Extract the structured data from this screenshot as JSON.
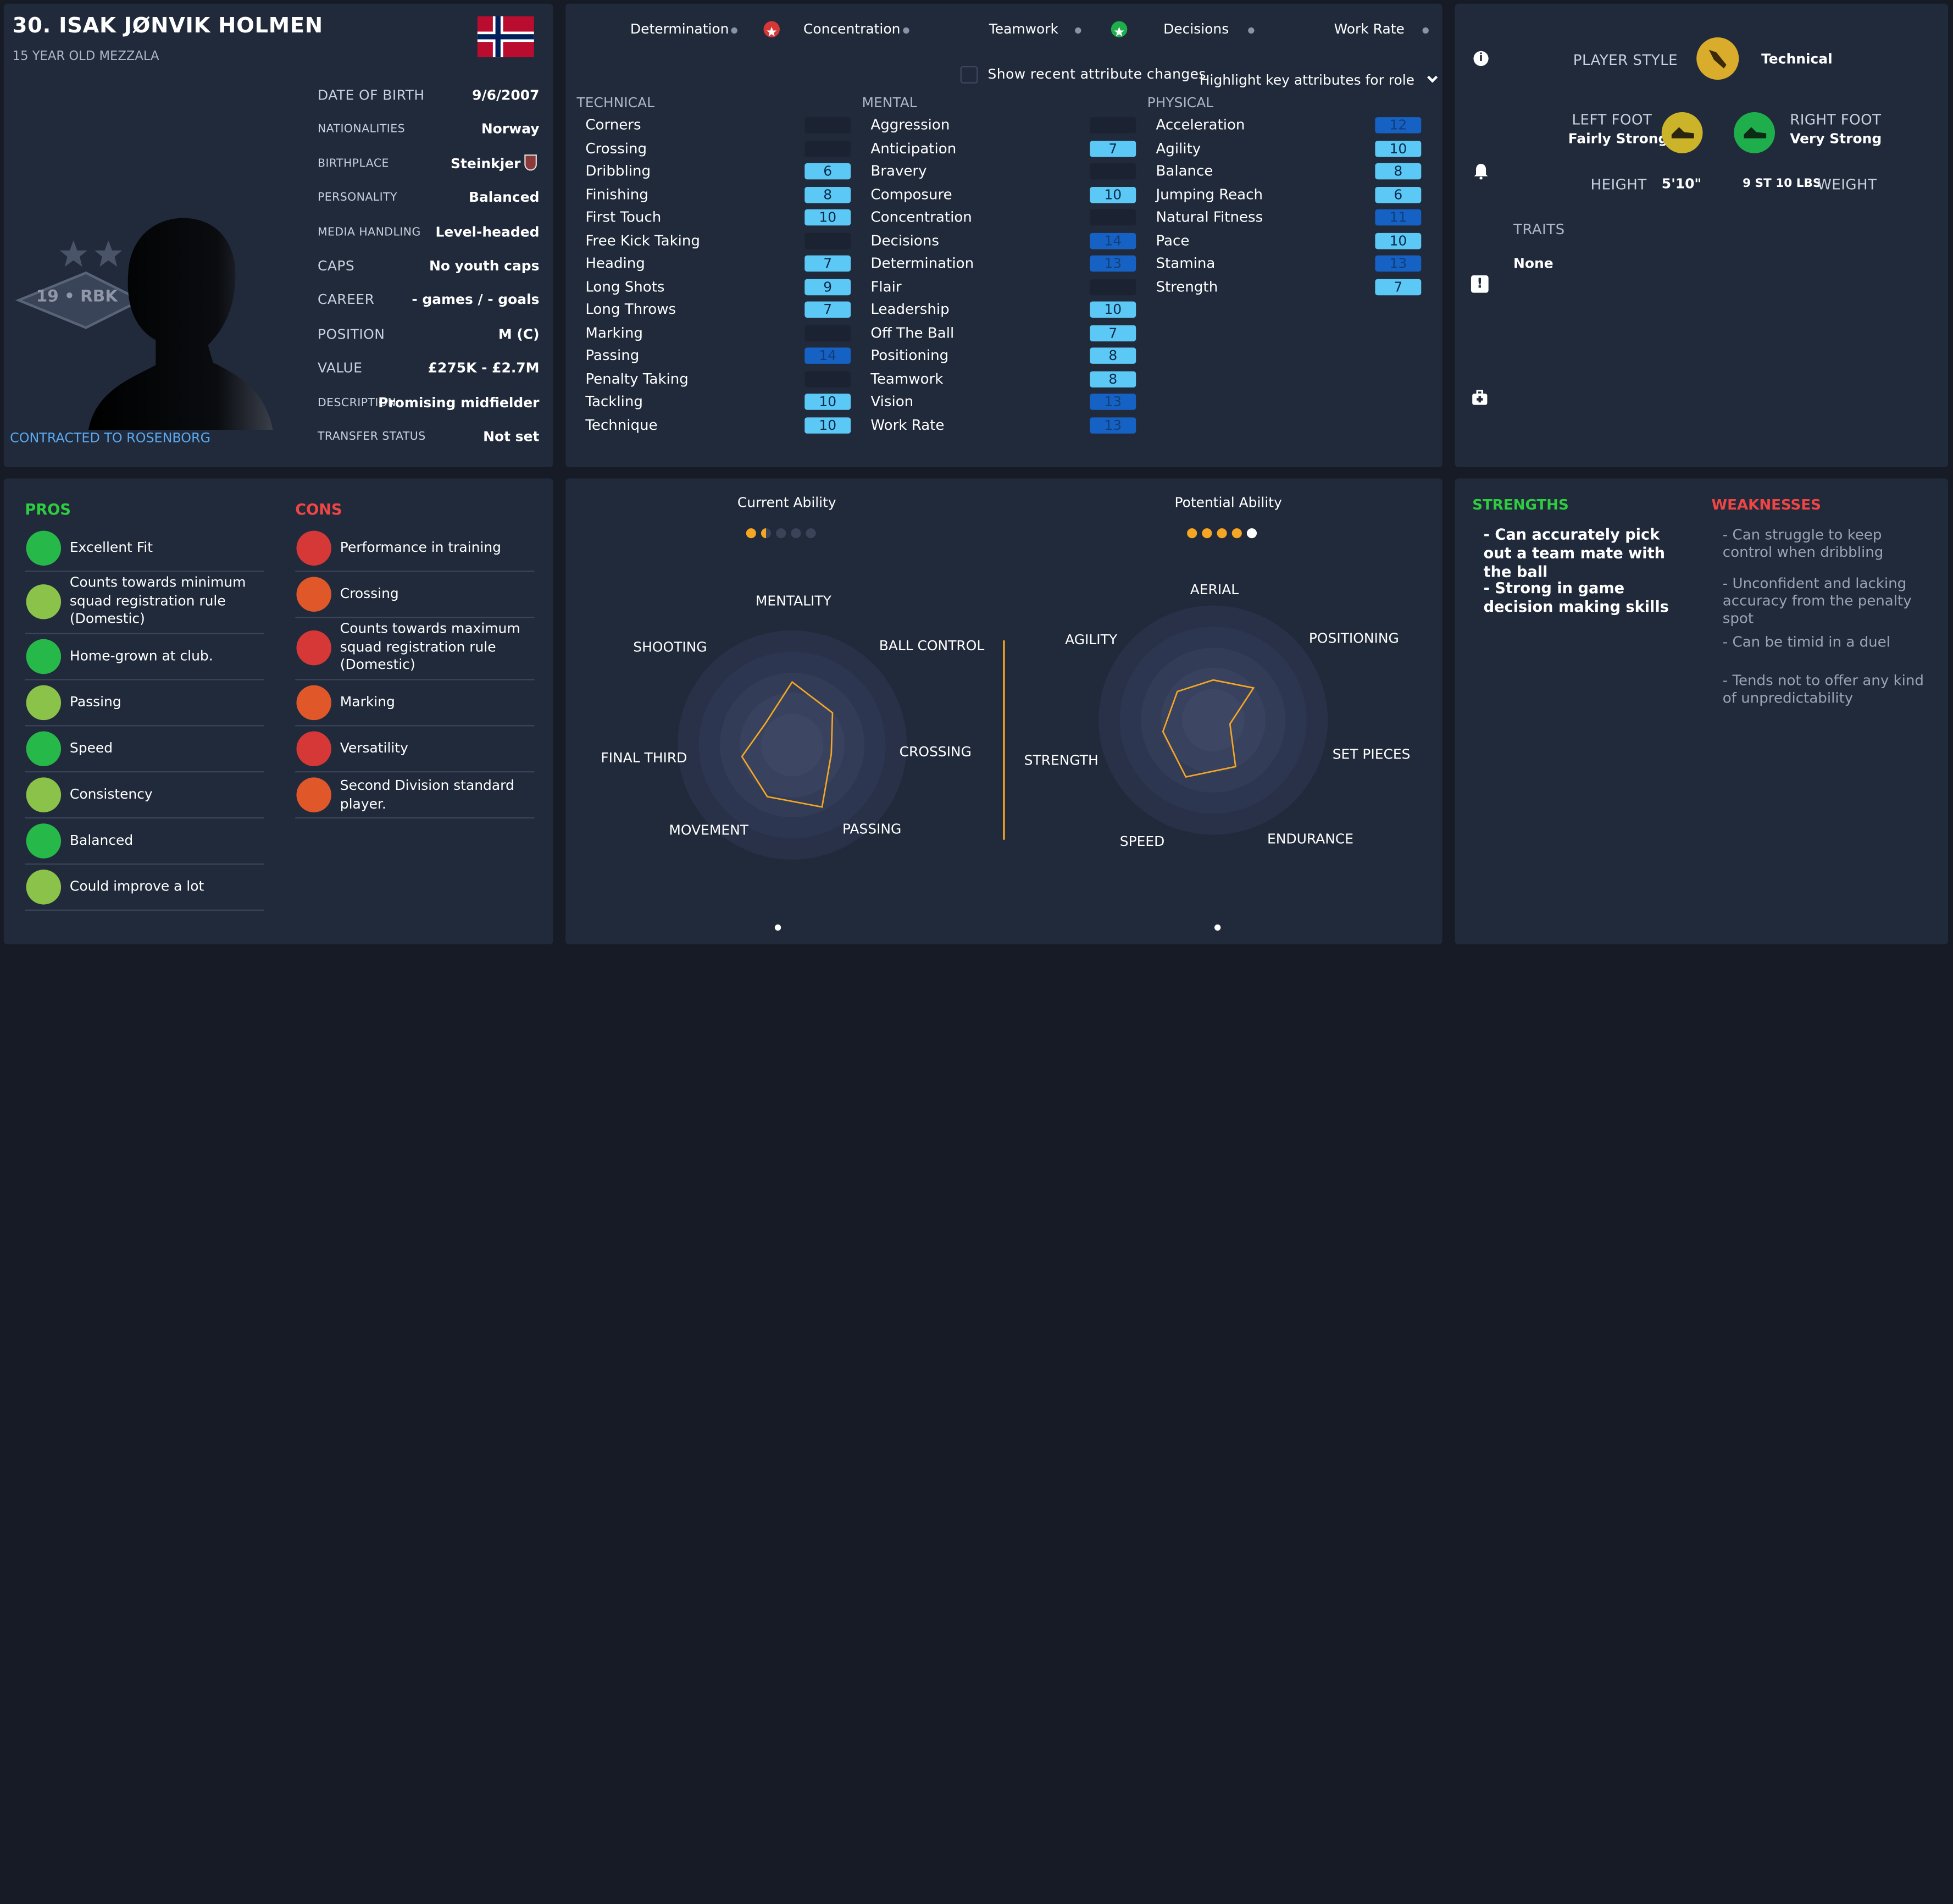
{
  "player": {
    "name": "30. ISAK JØNVIK HOLMEN",
    "subtitle": "15 YEAR OLD MEZZALA",
    "contract": "CONTRACTED TO ROSENBORG",
    "club_badge_text": "19 • RBK",
    "details": [
      {
        "label": "DATE OF BIRTH",
        "value": "9/6/2007"
      },
      {
        "label": "NATIONALITIES",
        "value": "Norway"
      },
      {
        "label": "BIRTHPLACE",
        "value": "Steinkjer"
      },
      {
        "label": "PERSONALITY",
        "value": "Balanced"
      },
      {
        "label": "MEDIA HANDLING",
        "value": "Level-headed"
      },
      {
        "label": "CAPS",
        "value": "No youth caps"
      },
      {
        "label": "CAREER",
        "value": "-  games /     - goals"
      },
      {
        "label": "POSITION",
        "value": "M (C)"
      },
      {
        "label": "VALUE",
        "value": "£275K - £2.7M"
      },
      {
        "label": "DESCRIPTION",
        "value": "Promising midfielder"
      },
      {
        "label": "TRANSFER STATUS",
        "value": "Not set"
      }
    ]
  },
  "key_attributes": [
    "Determination",
    "Concentration",
    "Teamwork",
    "Decisions",
    "Work Rate"
  ],
  "controls": {
    "show_changes": "Show recent attribute changes",
    "highlight": "Highlight key attributes for role"
  },
  "attributes": {
    "technical": {
      "title": "TECHNICAL",
      "items": [
        {
          "name": "Corners",
          "value": "",
          "shade": "none"
        },
        {
          "name": "Crossing",
          "value": "",
          "shade": "none"
        },
        {
          "name": "Dribbling",
          "value": "6",
          "shade": "light"
        },
        {
          "name": "Finishing",
          "value": "8",
          "shade": "light"
        },
        {
          "name": "First Touch",
          "value": "10",
          "shade": "light"
        },
        {
          "name": "Free Kick Taking",
          "value": "",
          "shade": "none"
        },
        {
          "name": "Heading",
          "value": "7",
          "shade": "light"
        },
        {
          "name": "Long Shots",
          "value": "9",
          "shade": "light"
        },
        {
          "name": "Long Throws",
          "value": "7",
          "shade": "light"
        },
        {
          "name": "Marking",
          "value": "",
          "shade": "none"
        },
        {
          "name": "Passing",
          "value": "14",
          "shade": "dark"
        },
        {
          "name": "Penalty Taking",
          "value": "",
          "shade": "none"
        },
        {
          "name": "Tackling",
          "value": "10",
          "shade": "light"
        },
        {
          "name": "Technique",
          "value": "10",
          "shade": "light"
        }
      ]
    },
    "mental": {
      "title": "MENTAL",
      "items": [
        {
          "name": "Aggression",
          "value": "",
          "shade": "none"
        },
        {
          "name": "Anticipation",
          "value": "7",
          "shade": "light"
        },
        {
          "name": "Bravery",
          "value": "",
          "shade": "none"
        },
        {
          "name": "Composure",
          "value": "10",
          "shade": "light"
        },
        {
          "name": "Concentration",
          "value": "",
          "shade": "none"
        },
        {
          "name": "Decisions",
          "value": "14",
          "shade": "dark"
        },
        {
          "name": "Determination",
          "value": "13",
          "shade": "dark"
        },
        {
          "name": "Flair",
          "value": "",
          "shade": "none"
        },
        {
          "name": "Leadership",
          "value": "10",
          "shade": "light"
        },
        {
          "name": "Off The Ball",
          "value": "7",
          "shade": "light"
        },
        {
          "name": "Positioning",
          "value": "8",
          "shade": "light"
        },
        {
          "name": "Teamwork",
          "value": "8",
          "shade": "light"
        },
        {
          "name": "Vision",
          "value": "13",
          "shade": "dark"
        },
        {
          "name": "Work Rate",
          "value": "13",
          "shade": "dark"
        }
      ]
    },
    "physical": {
      "title": "PHYSICAL",
      "items": [
        {
          "name": "Acceleration",
          "value": "12",
          "shade": "dark"
        },
        {
          "name": "Agility",
          "value": "10",
          "shade": "light"
        },
        {
          "name": "Balance",
          "value": "8",
          "shade": "light"
        },
        {
          "name": "Jumping Reach",
          "value": "6",
          "shade": "light"
        },
        {
          "name": "Natural Fitness",
          "value": "11",
          "shade": "dark"
        },
        {
          "name": "Pace",
          "value": "10",
          "shade": "light"
        },
        {
          "name": "Stamina",
          "value": "13",
          "shade": "dark"
        },
        {
          "name": "Strength",
          "value": "7",
          "shade": "light"
        }
      ]
    }
  },
  "style": {
    "player_style_label": "PLAYER STYLE",
    "player_style_value": "Technical",
    "left_foot_label": "LEFT FOOT",
    "left_foot_value": "Fairly Strong",
    "right_foot_label": "RIGHT FOOT",
    "right_foot_value": "Very Strong",
    "height_label": "HEIGHT",
    "height_value": "5'10\"",
    "weight_value": "9 ST 10 LBS",
    "weight_label": "WEIGHT",
    "traits_label": "TRAITS",
    "traits_value": "None"
  },
  "pros_title": "PROS",
  "pros": [
    "Excellent Fit",
    "Counts towards minimum squad registration rule (Domestic)",
    "Home-grown at club.",
    "Passing",
    "Speed",
    "Consistency",
    "Balanced",
    "Could improve a lot"
  ],
  "cons_title": "CONS",
  "cons": [
    "Performance in training",
    "Crossing",
    "Counts towards maximum squad registration rule (Domestic)",
    "Marking",
    "Versatility",
    "Second Division standard player."
  ],
  "ability": {
    "current_label": "Current Ability",
    "potential_label": "Potential Ability",
    "current_stars": 1.5,
    "potential_stars": 4.5
  },
  "radar_left": {
    "labels": [
      "MENTALITY",
      "BALL CONTROL",
      "CROSSING",
      "PASSING",
      "MOVEMENT",
      "FINAL THIRD",
      "SHOOTING"
    ],
    "values": [
      0.55,
      0.45,
      0.35,
      0.6,
      0.5,
      0.45,
      0.3
    ]
  },
  "radar_right": {
    "labels": [
      "AERIAL",
      "POSITIONING",
      "SET PIECES",
      "ENDURANCE",
      "SPEED",
      "STRENGTH",
      "AGILITY"
    ],
    "values": [
      0.35,
      0.45,
      0.15,
      0.45,
      0.55,
      0.45,
      0.4
    ]
  },
  "strengths_title": "STRENGTHS",
  "strengths": [
    "- Can accurately pick out a team mate with the ball",
    "- Strong in game decision making skills"
  ],
  "weaknesses_title": "WEAKNESSES",
  "weaknesses": [
    "- Can struggle to keep control when dribbling",
    "- Unconfident and lacking accuracy from the penalty spot",
    "- Can be timid in a duel",
    "- Tends not to offer any kind of unpredictability"
  ],
  "colors": {
    "panel": "#212a3b",
    "light_badge": "#5cc8f6",
    "dark_badge": "#1662c4",
    "accent_gold": "#f5a623",
    "pros": "#2ecc40",
    "cons": "#f04545"
  }
}
